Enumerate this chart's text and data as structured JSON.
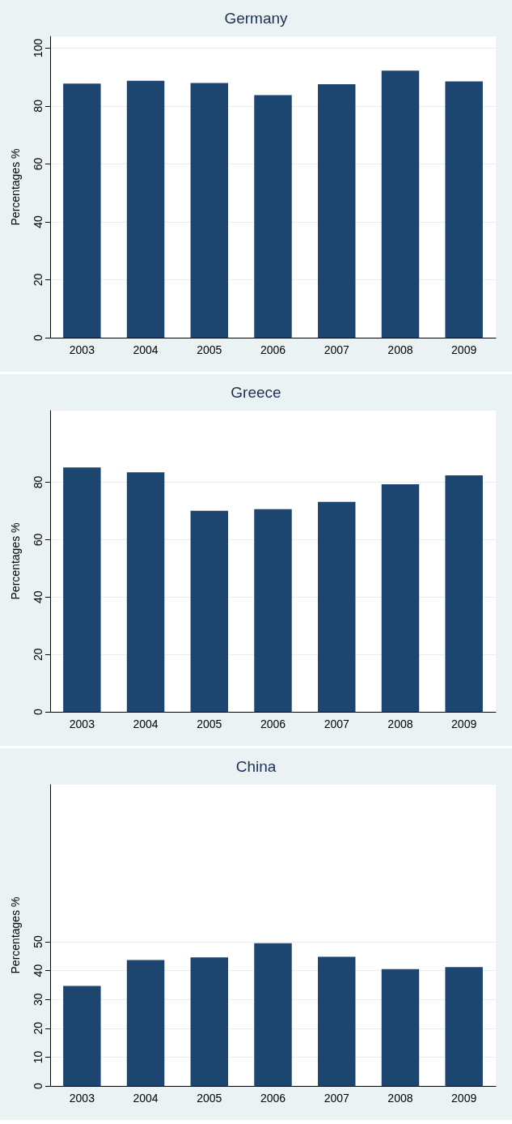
{
  "chart_data": [
    {
      "type": "bar",
      "title": "Germany",
      "ylabel": "Percentages %",
      "categories": [
        "2003",
        "2004",
        "2005",
        "2006",
        "2007",
        "2008",
        "2009"
      ],
      "values": [
        87.7,
        88.7,
        87.9,
        83.7,
        87.5,
        92.2,
        88.5
      ],
      "color": "#1c4670",
      "ylim": [
        0,
        104
      ],
      "yticks": [
        0,
        20,
        40,
        60,
        80,
        100
      ],
      "grid": "y"
    },
    {
      "type": "bar",
      "title": "Greece",
      "ylabel": "Percentages %",
      "categories": [
        "2003",
        "2004",
        "2005",
        "2006",
        "2007",
        "2008",
        "2009"
      ],
      "values": [
        85.2,
        83.5,
        70.1,
        70.6,
        73.2,
        79.3,
        82.4
      ],
      "color": "#1c4670",
      "ylim": [
        0,
        105
      ],
      "yticks": [
        0,
        20,
        40,
        60,
        80
      ],
      "grid": "y"
    },
    {
      "type": "bar",
      "title": "China",
      "ylabel": "Percentages %",
      "categories": [
        "2003",
        "2004",
        "2005",
        "2006",
        "2007",
        "2008",
        "2009"
      ],
      "values": [
        34.7,
        43.7,
        44.6,
        49.5,
        44.8,
        40.5,
        41.2
      ],
      "color": "#1c4670",
      "ylim": [
        0,
        104.5
      ],
      "yticks": [
        0,
        10,
        20,
        30,
        40,
        50
      ],
      "grid": "y"
    }
  ]
}
